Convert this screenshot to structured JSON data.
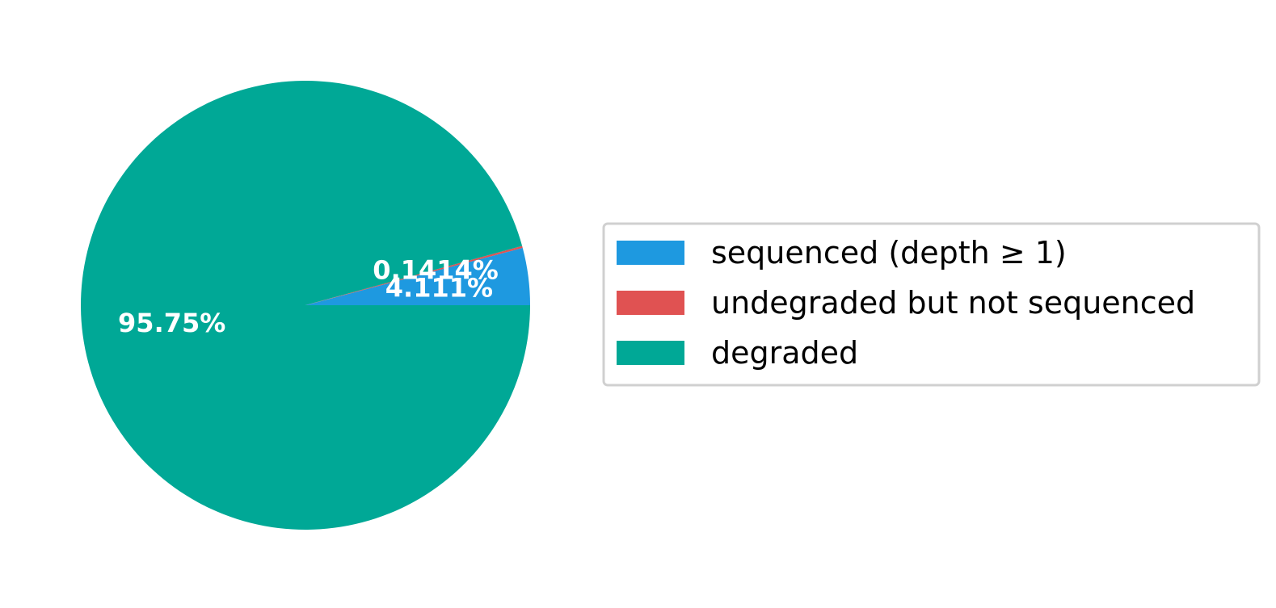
{
  "chart_data": {
    "type": "pie",
    "title": "",
    "slices": [
      {
        "label": "sequenced (depth ≥ 1)",
        "value": 4.111,
        "display": "4.111%",
        "color": "#1E99E0"
      },
      {
        "label": "undegraded but not sequenced",
        "value": 0.1414,
        "display": "0.1414%",
        "color": "#E05252"
      },
      {
        "label": "degraded",
        "value": 95.75,
        "display": "95.75%",
        "color": "#00A896"
      }
    ],
    "start_angle_deg": 0,
    "direction": "counterclockwise",
    "legend_position": "right",
    "label_color": "#ffffff"
  }
}
